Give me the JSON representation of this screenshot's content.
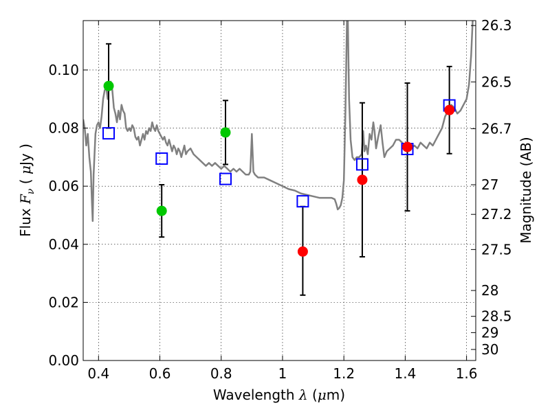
{
  "chart_data": {
    "type": "scatter",
    "xlabel": "Wavelength  λ (μm)",
    "ylabel": "Flux  F_ν ( μJy )",
    "y2label": "Magnitude (AB)",
    "xlim": [
      0.35,
      1.63
    ],
    "ylim": [
      0.0,
      0.117
    ],
    "grid": true,
    "x_ticks": [
      0.4,
      0.6,
      0.8,
      1.0,
      1.2,
      1.4,
      1.6
    ],
    "x_tick_labels": [
      "0.4",
      "0.6",
      "0.8",
      "1",
      "1.2",
      "1.4",
      "1.6"
    ],
    "y_ticks": [
      0.0,
      0.02,
      0.04,
      0.06,
      0.08,
      0.1
    ],
    "y_tick_labels": [
      "0.00",
      "0.02",
      "0.04",
      "0.06",
      "0.08",
      "0.10"
    ],
    "y2_ticks": [
      {
        "label": "26.3",
        "flux": 0.1153
      },
      {
        "label": "26.5",
        "flux": 0.0959
      },
      {
        "label": "26.7",
        "flux": 0.0798
      },
      {
        "label": "27",
        "flux": 0.0605
      },
      {
        "label": "27.2",
        "flux": 0.0503
      },
      {
        "label": "27.5",
        "flux": 0.0382
      },
      {
        "label": "28",
        "flux": 0.0241
      },
      {
        "label": "28.5",
        "flux": 0.0152
      },
      {
        "label": "29",
        "flux": 0.0096
      },
      {
        "label": "30",
        "flux": 0.0038
      }
    ],
    "series": [
      {
        "marker": "filled-circle",
        "color": "#00c800",
        "points": [
          {
            "x": 0.433,
            "y": 0.0945,
            "yerr_low": 0.0145,
            "yerr_high": 0.0145
          },
          {
            "x": 0.606,
            "y": 0.0515,
            "yerr_low": 0.009,
            "yerr_high": 0.009
          },
          {
            "x": 0.814,
            "y": 0.0785,
            "yerr_low": 0.011,
            "yerr_high": 0.011
          }
        ]
      },
      {
        "marker": "filled-circle",
        "color": "#ff0000",
        "points": [
          {
            "x": 1.066,
            "y": 0.0375,
            "yerr_low": 0.015,
            "yerr_high": 0.0155
          },
          {
            "x": 1.26,
            "y": 0.0622,
            "yerr_low": 0.0265,
            "yerr_high": 0.0265
          },
          {
            "x": 1.407,
            "y": 0.0735,
            "yerr_low": 0.022,
            "yerr_high": 0.022
          },
          {
            "x": 1.544,
            "y": 0.0862,
            "yerr_low": 0.015,
            "yerr_high": 0.015
          }
        ]
      },
      {
        "marker": "open-square",
        "color": "#0000ff",
        "points": [
          {
            "x": 0.433,
            "y": 0.0782
          },
          {
            "x": 0.606,
            "y": 0.0695
          },
          {
            "x": 0.814,
            "y": 0.0625
          },
          {
            "x": 1.066,
            "y": 0.0548
          },
          {
            "x": 1.26,
            "y": 0.0675
          },
          {
            "x": 1.407,
            "y": 0.0728
          },
          {
            "x": 1.544,
            "y": 0.0878
          }
        ]
      },
      {
        "type": "line",
        "color": "#808080",
        "points": [
          [
            0.35,
            0.083
          ],
          [
            0.355,
            0.08
          ],
          [
            0.36,
            0.074
          ],
          [
            0.365,
            0.078
          ],
          [
            0.37,
            0.07
          ],
          [
            0.375,
            0.065
          ],
          [
            0.378,
            0.056
          ],
          [
            0.381,
            0.048
          ],
          [
            0.384,
            0.064
          ],
          [
            0.39,
            0.078
          ],
          [
            0.395,
            0.081
          ],
          [
            0.4,
            0.082
          ],
          [
            0.405,
            0.08
          ],
          [
            0.41,
            0.084
          ],
          [
            0.415,
            0.09
          ],
          [
            0.42,
            0.093
          ],
          [
            0.425,
            0.094
          ],
          [
            0.43,
            0.09
          ],
          [
            0.435,
            0.095
          ],
          [
            0.44,
            0.096
          ],
          [
            0.445,
            0.093
          ],
          [
            0.45,
            0.087
          ],
          [
            0.455,
            0.085
          ],
          [
            0.46,
            0.082
          ],
          [
            0.465,
            0.086
          ],
          [
            0.47,
            0.083
          ],
          [
            0.475,
            0.088
          ],
          [
            0.48,
            0.086
          ],
          [
            0.485,
            0.085
          ],
          [
            0.49,
            0.08
          ],
          [
            0.495,
            0.079
          ],
          [
            0.5,
            0.08
          ],
          [
            0.505,
            0.079
          ],
          [
            0.51,
            0.081
          ],
          [
            0.515,
            0.08
          ],
          [
            0.52,
            0.077
          ],
          [
            0.525,
            0.076
          ],
          [
            0.53,
            0.077
          ],
          [
            0.535,
            0.074
          ],
          [
            0.54,
            0.076
          ],
          [
            0.545,
            0.078
          ],
          [
            0.55,
            0.076
          ],
          [
            0.555,
            0.079
          ],
          [
            0.56,
            0.078
          ],
          [
            0.565,
            0.08
          ],
          [
            0.57,
            0.079
          ],
          [
            0.575,
            0.082
          ],
          [
            0.58,
            0.08
          ],
          [
            0.585,
            0.079
          ],
          [
            0.59,
            0.081
          ],
          [
            0.595,
            0.079
          ],
          [
            0.6,
            0.078
          ],
          [
            0.605,
            0.077
          ],
          [
            0.61,
            0.076
          ],
          [
            0.615,
            0.077
          ],
          [
            0.62,
            0.075
          ],
          [
            0.625,
            0.074
          ],
          [
            0.63,
            0.076
          ],
          [
            0.635,
            0.074
          ],
          [
            0.64,
            0.072
          ],
          [
            0.645,
            0.074
          ],
          [
            0.65,
            0.073
          ],
          [
            0.655,
            0.071
          ],
          [
            0.66,
            0.073
          ],
          [
            0.665,
            0.072
          ],
          [
            0.67,
            0.07
          ],
          [
            0.675,
            0.072
          ],
          [
            0.68,
            0.074
          ],
          [
            0.685,
            0.071
          ],
          [
            0.69,
            0.072
          ],
          [
            0.7,
            0.073
          ],
          [
            0.71,
            0.071
          ],
          [
            0.72,
            0.07
          ],
          [
            0.73,
            0.069
          ],
          [
            0.74,
            0.068
          ],
          [
            0.75,
            0.067
          ],
          [
            0.76,
            0.068
          ],
          [
            0.77,
            0.067
          ],
          [
            0.78,
            0.068
          ],
          [
            0.79,
            0.067
          ],
          [
            0.8,
            0.066
          ],
          [
            0.81,
            0.067
          ],
          [
            0.82,
            0.066
          ],
          [
            0.83,
            0.065
          ],
          [
            0.84,
            0.066
          ],
          [
            0.85,
            0.065
          ],
          [
            0.86,
            0.066
          ],
          [
            0.87,
            0.065
          ],
          [
            0.88,
            0.064
          ],
          [
            0.89,
            0.064
          ],
          [
            0.895,
            0.065
          ],
          [
            0.9,
            0.078
          ],
          [
            0.905,
            0.065
          ],
          [
            0.91,
            0.064
          ],
          [
            0.92,
            0.063
          ],
          [
            0.94,
            0.063
          ],
          [
            0.96,
            0.062
          ],
          [
            0.98,
            0.061
          ],
          [
            1.0,
            0.06
          ],
          [
            1.02,
            0.059
          ],
          [
            1.04,
            0.0585
          ],
          [
            1.06,
            0.0575
          ],
          [
            1.08,
            0.057
          ],
          [
            1.1,
            0.0565
          ],
          [
            1.12,
            0.056
          ],
          [
            1.14,
            0.056
          ],
          [
            1.16,
            0.056
          ],
          [
            1.17,
            0.0555
          ],
          [
            1.175,
            0.054
          ],
          [
            1.18,
            0.052
          ],
          [
            1.185,
            0.0525
          ],
          [
            1.19,
            0.0535
          ],
          [
            1.195,
            0.056
          ],
          [
            1.2,
            0.062
          ],
          [
            1.205,
            0.085
          ],
          [
            1.21,
            0.117
          ],
          [
            1.213,
            0.117
          ],
          [
            1.217,
            0.09
          ],
          [
            1.222,
            0.076
          ],
          [
            1.228,
            0.07
          ],
          [
            1.235,
            0.069
          ],
          [
            1.242,
            0.07
          ],
          [
            1.25,
            0.07
          ],
          [
            1.258,
            0.071
          ],
          [
            1.263,
            0.079
          ],
          [
            1.267,
            0.072
          ],
          [
            1.272,
            0.074
          ],
          [
            1.278,
            0.071
          ],
          [
            1.284,
            0.078
          ],
          [
            1.29,
            0.076
          ],
          [
            1.296,
            0.082
          ],
          [
            1.3,
            0.079
          ],
          [
            1.305,
            0.073
          ],
          [
            1.312,
            0.077
          ],
          [
            1.32,
            0.081
          ],
          [
            1.326,
            0.075
          ],
          [
            1.332,
            0.07
          ],
          [
            1.34,
            0.072
          ],
          [
            1.35,
            0.073
          ],
          [
            1.36,
            0.074
          ],
          [
            1.37,
            0.076
          ],
          [
            1.38,
            0.076
          ],
          [
            1.39,
            0.075
          ],
          [
            1.4,
            0.074
          ],
          [
            1.41,
            0.074
          ],
          [
            1.42,
            0.073
          ],
          [
            1.43,
            0.074
          ],
          [
            1.44,
            0.073
          ],
          [
            1.45,
            0.075
          ],
          [
            1.46,
            0.074
          ],
          [
            1.47,
            0.073
          ],
          [
            1.48,
            0.075
          ],
          [
            1.49,
            0.074
          ],
          [
            1.5,
            0.076
          ],
          [
            1.51,
            0.078
          ],
          [
            1.52,
            0.08
          ],
          [
            1.53,
            0.084
          ],
          [
            1.54,
            0.086
          ],
          [
            1.55,
            0.088
          ],
          [
            1.56,
            0.087
          ],
          [
            1.57,
            0.085
          ],
          [
            1.58,
            0.086
          ],
          [
            1.59,
            0.088
          ],
          [
            1.6,
            0.09
          ],
          [
            1.608,
            0.095
          ],
          [
            1.615,
            0.105
          ],
          [
            1.62,
            0.117
          ]
        ]
      }
    ]
  }
}
